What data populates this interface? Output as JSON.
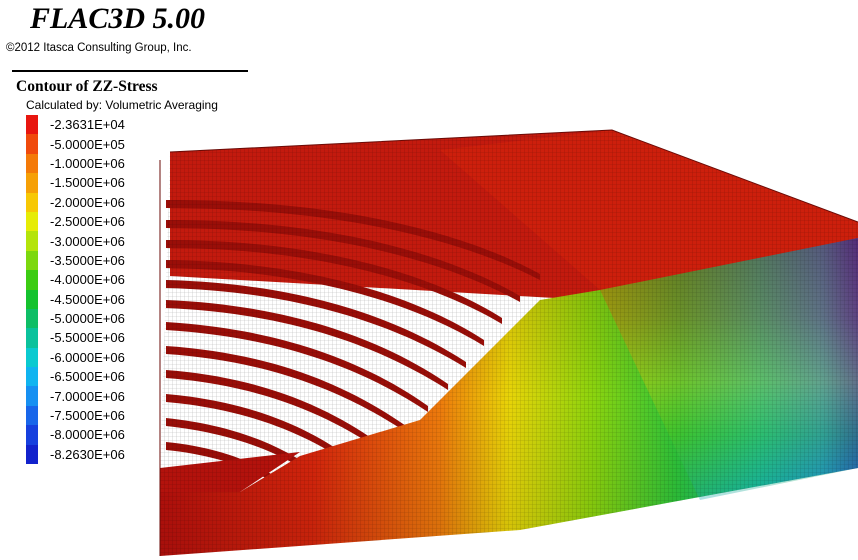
{
  "header": {
    "app_title": "FLAC3D 5.00",
    "copyright": "©2012 Itasca Consulting Group, Inc."
  },
  "plot": {
    "title": "Contour of ZZ-Stress",
    "subtitle": "Calculated by: Volumetric Averaging"
  },
  "legend": {
    "items": [
      {
        "label": "-2.3631E+04",
        "color": "#e8160f"
      },
      {
        "label": "-5.0000E+05",
        "color": "#f04a0c"
      },
      {
        "label": "-1.0000E+06",
        "color": "#f47a08"
      },
      {
        "label": "-1.5000E+06",
        "color": "#f6a006"
      },
      {
        "label": "-2.0000E+06",
        "color": "#f7c804"
      },
      {
        "label": "-2.5000E+06",
        "color": "#e6ec06"
      },
      {
        "label": "-3.0000E+06",
        "color": "#b4e40a"
      },
      {
        "label": "-3.5000E+06",
        "color": "#7cd80e"
      },
      {
        "label": "-4.0000E+06",
        "color": "#3ccc12"
      },
      {
        "label": "-4.5000E+06",
        "color": "#14c22e"
      },
      {
        "label": "-5.0000E+06",
        "color": "#0ebe66"
      },
      {
        "label": "-5.5000E+06",
        "color": "#0ac29c"
      },
      {
        "label": "-6.0000E+06",
        "color": "#0acad0"
      },
      {
        "label": "-6.5000E+06",
        "color": "#10b4f0"
      },
      {
        "label": "-7.0000E+06",
        "color": "#1690f2"
      },
      {
        "label": "-7.5000E+06",
        "color": "#1866ea"
      },
      {
        "label": "-8.0000E+06",
        "color": "#1640de"
      },
      {
        "label": "-8.2630E+06",
        "color": "#1222cc"
      }
    ]
  }
}
